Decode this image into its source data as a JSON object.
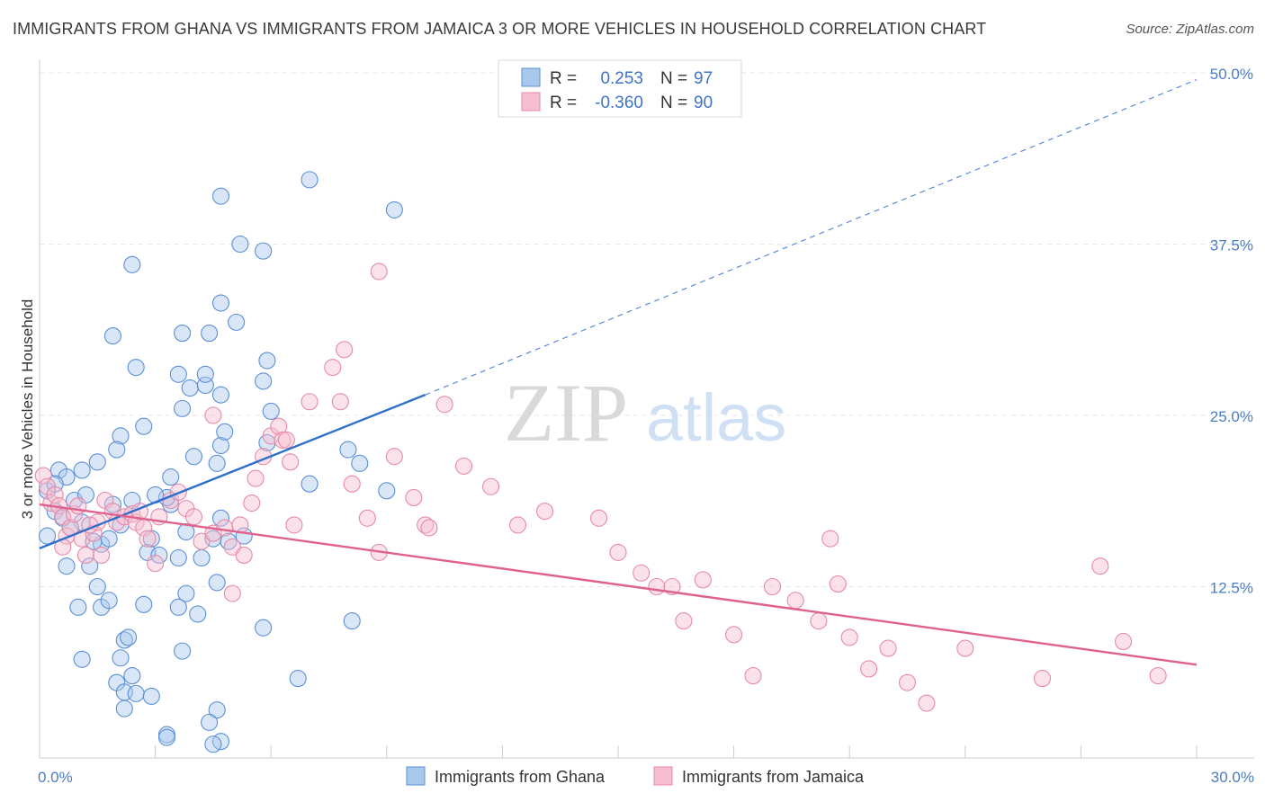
{
  "title": "IMMIGRANTS FROM GHANA VS IMMIGRANTS FROM JAMAICA 3 OR MORE VEHICLES IN HOUSEHOLD CORRELATION CHART",
  "source": "Source: ZipAtlas.com",
  "watermark": {
    "zip": "ZIP",
    "atlas": "atlas"
  },
  "colors": {
    "ghana_fill": "#a9c8ee",
    "ghana_stroke": "#5b8fd6",
    "ghana_line": "#2f6fcc",
    "jamaica_fill": "#f6bfd0",
    "jamaica_stroke": "#e58aa8",
    "jamaica_line": "#e0608e",
    "tick_text": "#4a7cc4",
    "grid": "#e5e5e5"
  },
  "legend": {
    "r_label": "R =",
    "n_label": "N =",
    "rows": [
      {
        "r": "0.253",
        "n": "97"
      },
      {
        "r": "-0.360",
        "n": "90"
      }
    ]
  },
  "chart_data": {
    "type": "scatter",
    "title": "IMMIGRANTS FROM GHANA VS IMMIGRANTS FROM JAMAICA 3 OR MORE VEHICLES IN HOUSEHOLD CORRELATION CHART",
    "xlabel": "",
    "ylabel": "3 or more Vehicles in Household",
    "xlim": [
      0,
      30
    ],
    "ylim": [
      0,
      50
    ],
    "x_tick_labels": [
      "0.0%",
      "30.0%"
    ],
    "y_ticks": [
      12.5,
      25.0,
      37.5,
      50.0
    ],
    "y_tick_labels": [
      "12.5%",
      "25.0%",
      "37.5%",
      "50.0%"
    ],
    "grid": true,
    "legend_position": "top-center",
    "series": [
      {
        "name": "Immigrants from Ghana",
        "r": 0.253,
        "n": 97,
        "trend": {
          "x0": 0,
          "y0": 15.3,
          "x1": 10,
          "y1": 26.5,
          "dashed_to_x": 30,
          "dashed_to_y": 49.5
        },
        "points": [
          [
            0.2,
            19.5
          ],
          [
            0.4,
            18
          ],
          [
            0.5,
            21
          ],
          [
            0.7,
            20.5
          ],
          [
            0.6,
            17.5
          ],
          [
            0.9,
            18.8
          ],
          [
            1.1,
            17.2
          ],
          [
            0.8,
            16.8
          ],
          [
            1.2,
            19.2
          ],
          [
            1.1,
            21
          ],
          [
            0.4,
            20
          ],
          [
            0.2,
            16.2
          ],
          [
            1.3,
            14
          ],
          [
            1.6,
            15.6
          ],
          [
            1.4,
            15.8
          ],
          [
            1.8,
            16
          ],
          [
            2.1,
            17
          ],
          [
            2.4,
            18.8
          ],
          [
            1.9,
            18.5
          ],
          [
            0.7,
            14
          ],
          [
            1.6,
            11
          ],
          [
            1.8,
            11.5
          ],
          [
            1.5,
            12.5
          ],
          [
            1.0,
            11
          ],
          [
            2.8,
            15
          ],
          [
            3.1,
            14.8
          ],
          [
            2.9,
            16
          ],
          [
            3.4,
            18.5
          ],
          [
            3.3,
            19
          ],
          [
            3.0,
            19.2
          ],
          [
            3.8,
            16.5
          ],
          [
            4.5,
            16
          ],
          [
            4.7,
            17.5
          ],
          [
            5.3,
            16.2
          ],
          [
            4.9,
            15.8
          ],
          [
            3.6,
            14.6
          ],
          [
            4.2,
            14.6
          ],
          [
            3.8,
            12
          ],
          [
            3.6,
            11
          ],
          [
            4.1,
            10.5
          ],
          [
            4.6,
            12.8
          ],
          [
            4.6,
            21.5
          ],
          [
            4.7,
            22.8
          ],
          [
            3.7,
            25.5
          ],
          [
            4.0,
            22
          ],
          [
            2.1,
            23.5
          ],
          [
            2.0,
            22.5
          ],
          [
            2.7,
            24.2
          ],
          [
            3.9,
            27
          ],
          [
            4.3,
            27.2
          ],
          [
            2.5,
            28.5
          ],
          [
            3.6,
            28
          ],
          [
            4.3,
            28
          ],
          [
            4.8,
            23.8
          ],
          [
            4.7,
            26.5
          ],
          [
            3.4,
            20.5
          ],
          [
            1.5,
            21.6
          ],
          [
            3.7,
            31
          ],
          [
            4.4,
            31
          ],
          [
            5.1,
            31.8
          ],
          [
            1.9,
            30.8
          ],
          [
            2.4,
            36
          ],
          [
            5.2,
            37.5
          ],
          [
            5.8,
            37
          ],
          [
            4.7,
            33.2
          ],
          [
            5.9,
            29
          ],
          [
            5.8,
            27.5
          ],
          [
            6.0,
            25.3
          ],
          [
            5.9,
            23
          ],
          [
            7.0,
            20
          ],
          [
            8.0,
            22.5
          ],
          [
            8.3,
            21.5
          ],
          [
            9.0,
            19.5
          ],
          [
            7.0,
            42.2
          ],
          [
            9.2,
            40
          ],
          [
            4.7,
            41
          ],
          [
            2.7,
            11.2
          ],
          [
            2.2,
            8.6
          ],
          [
            2.1,
            7.3
          ],
          [
            2.3,
            8.8
          ],
          [
            2.4,
            6
          ],
          [
            2.0,
            5.5
          ],
          [
            2.2,
            4.8
          ],
          [
            2.5,
            4.7
          ],
          [
            2.9,
            4.5
          ],
          [
            2.2,
            3.6
          ],
          [
            3.3,
            1.7
          ],
          [
            3.3,
            1.5
          ],
          [
            1.1,
            7.2
          ],
          [
            3.7,
            7.8
          ],
          [
            4.6,
            3.5
          ],
          [
            4.4,
            2.6
          ],
          [
            4.7,
            1.2
          ],
          [
            4.5,
            1.0
          ],
          [
            5.8,
            9.5
          ],
          [
            6.7,
            5.8
          ],
          [
            8.1,
            10.0
          ]
        ]
      },
      {
        "name": "Immigrants from Jamaica",
        "r": -0.36,
        "n": 90,
        "trend": {
          "x0": 0,
          "y0": 18.5,
          "x1": 30,
          "y1": 6.8
        },
        "points": [
          [
            0.1,
            20.6
          ],
          [
            0.2,
            19.8
          ],
          [
            0.3,
            18.6
          ],
          [
            0.4,
            19.2
          ],
          [
            0.5,
            18.4
          ],
          [
            0.6,
            17.6
          ],
          [
            0.7,
            16.2
          ],
          [
            0.8,
            16.8
          ],
          [
            0.9,
            17.8
          ],
          [
            1.0,
            18.4
          ],
          [
            1.1,
            16.0
          ],
          [
            1.2,
            14.8
          ],
          [
            1.4,
            16.4
          ],
          [
            1.5,
            17.2
          ],
          [
            1.7,
            18.8
          ],
          [
            1.9,
            18.0
          ],
          [
            2.0,
            17.2
          ],
          [
            2.2,
            17.6
          ],
          [
            2.4,
            17.8
          ],
          [
            2.5,
            17.2
          ],
          [
            2.7,
            16.8
          ],
          [
            2.8,
            16.0
          ],
          [
            3.1,
            17.6
          ],
          [
            3.4,
            18.8
          ],
          [
            3.6,
            19.4
          ],
          [
            3.8,
            18.2
          ],
          [
            4.0,
            17.6
          ],
          [
            4.2,
            15.8
          ],
          [
            4.5,
            16.4
          ],
          [
            4.8,
            16.8
          ],
          [
            5.0,
            15.4
          ],
          [
            5.2,
            17.0
          ],
          [
            5.3,
            14.8
          ],
          [
            5.5,
            18.6
          ],
          [
            5.6,
            20.4
          ],
          [
            5.8,
            22.0
          ],
          [
            6.0,
            23.5
          ],
          [
            6.2,
            24.2
          ],
          [
            6.3,
            23.2
          ],
          [
            6.4,
            23.2
          ],
          [
            6.5,
            21.6
          ],
          [
            6.6,
            17.0
          ],
          [
            7.0,
            26.0
          ],
          [
            7.6,
            28.5
          ],
          [
            7.8,
            26.0
          ],
          [
            8.1,
            20.0
          ],
          [
            8.5,
            17.5
          ],
          [
            8.8,
            15.0
          ],
          [
            9.2,
            22.0
          ],
          [
            9.7,
            19.0
          ],
          [
            10.0,
            17.0
          ],
          [
            10.1,
            16.8
          ],
          [
            10.5,
            25.8
          ],
          [
            11.0,
            21.3
          ],
          [
            11.7,
            19.8
          ],
          [
            12.4,
            17.0
          ],
          [
            13.1,
            18.0
          ],
          [
            14.5,
            17.5
          ],
          [
            15.0,
            15.0
          ],
          [
            15.6,
            13.5
          ],
          [
            16.0,
            12.5
          ],
          [
            16.4,
            12.5
          ],
          [
            16.7,
            10.0
          ],
          [
            17.2,
            13.0
          ],
          [
            18.0,
            9.0
          ],
          [
            18.5,
            6.0
          ],
          [
            19.0,
            12.5
          ],
          [
            19.6,
            11.5
          ],
          [
            20.2,
            10.0
          ],
          [
            20.5,
            16.0
          ],
          [
            20.7,
            12.7
          ],
          [
            21.0,
            8.8
          ],
          [
            21.5,
            6.5
          ],
          [
            22.0,
            8.0
          ],
          [
            22.5,
            5.5
          ],
          [
            23.0,
            4.0
          ],
          [
            24.0,
            8.0
          ],
          [
            26.0,
            5.8
          ],
          [
            27.5,
            14.0
          ],
          [
            28.1,
            8.5
          ],
          [
            29.0,
            6.0
          ],
          [
            8.8,
            35.5
          ],
          [
            7.9,
            29.8
          ],
          [
            4.5,
            25.0
          ],
          [
            2.6,
            18.0
          ],
          [
            1.3,
            17.0
          ],
          [
            0.6,
            15.4
          ],
          [
            3.0,
            14.2
          ],
          [
            1.6,
            14.8
          ],
          [
            5.0,
            12.0
          ]
        ]
      }
    ]
  },
  "bottom_legend": [
    {
      "label": "Immigrants from Ghana"
    },
    {
      "label": "Immigrants from Jamaica"
    }
  ]
}
